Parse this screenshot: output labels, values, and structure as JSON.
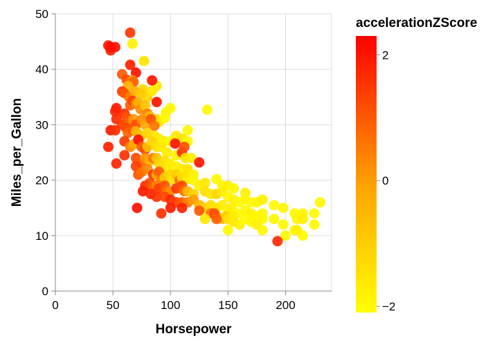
{
  "chart_data": {
    "type": "scatter",
    "title": "",
    "xlabel": "Horsepower",
    "ylabel": "Miles_per_Gallon",
    "xlim": [
      0,
      240
    ],
    "ylim": [
      0,
      50
    ],
    "x_ticks": [
      0,
      50,
      100,
      150,
      200
    ],
    "y_ticks": [
      0,
      10,
      20,
      30,
      40,
      50
    ],
    "grid": true,
    "legend": {
      "title": "accelerationZScore",
      "placement": "right",
      "domain": [
        -2.1,
        2.3
      ],
      "ticks": [
        -2,
        0,
        2
      ],
      "tick_labels": [
        "−2",
        "0",
        "2"
      ],
      "color_low": "#ffff00",
      "color_mid": "#ffa500",
      "color_high": "#ff0000"
    },
    "colors": {
      "grid": "#dddddd",
      "axis": "#888888"
    },
    "points": [
      {
        "x": 46,
        "y": 44.3,
        "z": 1.9
      },
      {
        "x": 48,
        "y": 43.4,
        "z": 1.8
      },
      {
        "x": 52,
        "y": 44.0,
        "z": 2.0
      },
      {
        "x": 48,
        "y": 44.0,
        "z": 2.1
      },
      {
        "x": 65,
        "y": 46.6,
        "z": 1.5
      },
      {
        "x": 67,
        "y": 44.6,
        "z": -1.8
      },
      {
        "x": 77,
        "y": 41.5,
        "z": -1.5
      },
      {
        "x": 65,
        "y": 40.8,
        "z": 1.8
      },
      {
        "x": 70,
        "y": 39.4,
        "z": 2.0
      },
      {
        "x": 58,
        "y": 39.1,
        "z": 1.0
      },
      {
        "x": 62,
        "y": 38.1,
        "z": 1.2
      },
      {
        "x": 67,
        "y": 38.0,
        "z": 0.3
      },
      {
        "x": 68,
        "y": 37.7,
        "z": 0.8
      },
      {
        "x": 63,
        "y": 37.0,
        "z": -0.5
      },
      {
        "x": 76,
        "y": 36.4,
        "z": -1.2
      },
      {
        "x": 88,
        "y": 37.0,
        "z": -1.6
      },
      {
        "x": 84,
        "y": 38.0,
        "z": 2.0
      },
      {
        "x": 58,
        "y": 36.0,
        "z": 1.5
      },
      {
        "x": 60,
        "y": 35.7,
        "z": 1.0
      },
      {
        "x": 64,
        "y": 35.0,
        "z": 0.6
      },
      {
        "x": 69,
        "y": 36.0,
        "z": -0.3
      },
      {
        "x": 74,
        "y": 35.6,
        "z": -0.9
      },
      {
        "x": 80,
        "y": 35.0,
        "z": -1.1
      },
      {
        "x": 84,
        "y": 36.1,
        "z": -1.6
      },
      {
        "x": 96,
        "y": 32.2,
        "z": -1.8
      },
      {
        "x": 100,
        "y": 33.0,
        "z": -1.9
      },
      {
        "x": 132,
        "y": 32.7,
        "z": -2.0
      },
      {
        "x": 88,
        "y": 34.1,
        "z": 2.0
      },
      {
        "x": 53,
        "y": 33.0,
        "z": 1.9
      },
      {
        "x": 52,
        "y": 32.4,
        "z": 1.8
      },
      {
        "x": 60,
        "y": 32.0,
        "z": 1.6
      },
      {
        "x": 65,
        "y": 33.5,
        "z": 0.9
      },
      {
        "x": 67,
        "y": 34.3,
        "z": 1.3
      },
      {
        "x": 70,
        "y": 33.8,
        "z": 0.5
      },
      {
        "x": 72,
        "y": 34.0,
        "z": -0.4
      },
      {
        "x": 74,
        "y": 32.8,
        "z": 0.2
      },
      {
        "x": 78,
        "y": 33.5,
        "z": -0.8
      },
      {
        "x": 80,
        "y": 32.0,
        "z": 0.4
      },
      {
        "x": 82,
        "y": 31.5,
        "z": -0.6
      },
      {
        "x": 88,
        "y": 31.0,
        "z": -1.3
      },
      {
        "x": 90,
        "y": 30.5,
        "z": -1.5
      },
      {
        "x": 95,
        "y": 31.2,
        "z": -1.9
      },
      {
        "x": 53,
        "y": 31.0,
        "z": 1.7
      },
      {
        "x": 58,
        "y": 30.0,
        "z": 1.4
      },
      {
        "x": 62,
        "y": 31.3,
        "z": 1.1
      },
      {
        "x": 65,
        "y": 30.2,
        "z": 0.7
      },
      {
        "x": 68,
        "y": 31.0,
        "z": 0.1
      },
      {
        "x": 70,
        "y": 30.0,
        "z": 1.2
      },
      {
        "x": 75,
        "y": 30.9,
        "z": 0.3
      },
      {
        "x": 78,
        "y": 30.0,
        "z": -0.2
      },
      {
        "x": 83,
        "y": 31.0,
        "z": 1.1
      },
      {
        "x": 86,
        "y": 29.8,
        "z": 0.6
      },
      {
        "x": 48,
        "y": 29.0,
        "z": 1.9
      },
      {
        "x": 52,
        "y": 29.0,
        "z": 1.6
      },
      {
        "x": 61,
        "y": 29.5,
        "z": 1.2
      },
      {
        "x": 63,
        "y": 28.5,
        "z": 0.8
      },
      {
        "x": 67,
        "y": 29.0,
        "z": 1.0
      },
      {
        "x": 70,
        "y": 28.8,
        "z": -0.5
      },
      {
        "x": 75,
        "y": 28.0,
        "z": -0.9
      },
      {
        "x": 80,
        "y": 28.5,
        "z": -1.2
      },
      {
        "x": 86,
        "y": 28.0,
        "z": -1.5
      },
      {
        "x": 90,
        "y": 27.5,
        "z": -1.7
      },
      {
        "x": 95,
        "y": 27.0,
        "z": -1.8
      },
      {
        "x": 100,
        "y": 27.0,
        "z": -1.9
      },
      {
        "x": 105,
        "y": 28.0,
        "z": -1.6
      },
      {
        "x": 110,
        "y": 27.5,
        "z": -1.4
      },
      {
        "x": 115,
        "y": 29.0,
        "z": -2.0
      },
      {
        "x": 115,
        "y": 27.0,
        "z": -1.9
      },
      {
        "x": 104,
        "y": 26.6,
        "z": 2.0
      },
      {
        "x": 46,
        "y": 26.0,
        "z": 1.8
      },
      {
        "x": 60,
        "y": 27.0,
        "z": 1.5
      },
      {
        "x": 65,
        "y": 26.0,
        "z": 0.4
      },
      {
        "x": 68,
        "y": 26.5,
        "z": -0.2
      },
      {
        "x": 72,
        "y": 27.3,
        "z": 2.1
      },
      {
        "x": 75,
        "y": 26.0,
        "z": 1.0
      },
      {
        "x": 78,
        "y": 25.5,
        "z": 1.3
      },
      {
        "x": 80,
        "y": 26.0,
        "z": -0.7
      },
      {
        "x": 84,
        "y": 27.0,
        "z": -1.1
      },
      {
        "x": 88,
        "y": 26.0,
        "z": -1.4
      },
      {
        "x": 92,
        "y": 26.0,
        "z": -1.6
      },
      {
        "x": 97,
        "y": 25.0,
        "z": -1.7
      },
      {
        "x": 105,
        "y": 24.5,
        "z": -1.8
      },
      {
        "x": 110,
        "y": 25.0,
        "z": 1.6
      },
      {
        "x": 112,
        "y": 26.0,
        "z": 1.2
      },
      {
        "x": 113,
        "y": 24.0,
        "z": -1.5
      },
      {
        "x": 118,
        "y": 24.0,
        "z": -1.7
      },
      {
        "x": 60,
        "y": 24.5,
        "z": 1.6
      },
      {
        "x": 70,
        "y": 24.0,
        "z": 1.2
      },
      {
        "x": 75,
        "y": 23.0,
        "z": 0.9
      },
      {
        "x": 78,
        "y": 24.0,
        "z": 0.2
      },
      {
        "x": 82,
        "y": 23.5,
        "z": -0.4
      },
      {
        "x": 85,
        "y": 24.0,
        "z": 0.6
      },
      {
        "x": 88,
        "y": 24.0,
        "z": -0.8
      },
      {
        "x": 90,
        "y": 23.0,
        "z": -1.1
      },
      {
        "x": 95,
        "y": 23.5,
        "z": -1.4
      },
      {
        "x": 97,
        "y": 22.0,
        "z": -1.6
      },
      {
        "x": 100,
        "y": 23.0,
        "z": -1.7
      },
      {
        "x": 105,
        "y": 22.5,
        "z": -1.8
      },
      {
        "x": 110,
        "y": 22.0,
        "z": -1.6
      },
      {
        "x": 112,
        "y": 21.5,
        "z": -1.9
      },
      {
        "x": 115,
        "y": 22.0,
        "z": -1.5
      },
      {
        "x": 120,
        "y": 21.0,
        "z": -1.8
      },
      {
        "x": 125,
        "y": 23.2,
        "z": 2.0
      },
      {
        "x": 53,
        "y": 23.0,
        "z": 1.8
      },
      {
        "x": 70,
        "y": 22.5,
        "z": 1.4
      },
      {
        "x": 72,
        "y": 21.0,
        "z": 1.1
      },
      {
        "x": 75,
        "y": 21.5,
        "z": 0.7
      },
      {
        "x": 80,
        "y": 22.0,
        "z": 0.3
      },
      {
        "x": 85,
        "y": 21.0,
        "z": 1.5
      },
      {
        "x": 88,
        "y": 21.0,
        "z": -0.3
      },
      {
        "x": 90,
        "y": 21.5,
        "z": 1.0
      },
      {
        "x": 92,
        "y": 20.0,
        "z": 0.5
      },
      {
        "x": 95,
        "y": 20.5,
        "z": -0.9
      },
      {
        "x": 100,
        "y": 21.0,
        "z": -1.2
      },
      {
        "x": 102,
        "y": 20.0,
        "z": -1.5
      },
      {
        "x": 105,
        "y": 21.0,
        "z": -1.0
      },
      {
        "x": 108,
        "y": 20.0,
        "z": 0.8
      },
      {
        "x": 110,
        "y": 20.5,
        "z": -1.4
      },
      {
        "x": 115,
        "y": 20.2,
        "z": -1.7
      },
      {
        "x": 120,
        "y": 20.0,
        "z": -1.9
      },
      {
        "x": 125,
        "y": 19.0,
        "z": -1.8
      },
      {
        "x": 130,
        "y": 19.5,
        "z": -1.6
      },
      {
        "x": 140,
        "y": 20.2,
        "z": -2.0
      },
      {
        "x": 145,
        "y": 19.0,
        "z": -1.9
      },
      {
        "x": 150,
        "y": 19.0,
        "z": -1.8
      },
      {
        "x": 155,
        "y": 18.5,
        "z": -1.9
      },
      {
        "x": 165,
        "y": 17.7,
        "z": -1.8
      },
      {
        "x": 78,
        "y": 19.0,
        "z": 1.6
      },
      {
        "x": 82,
        "y": 19.5,
        "z": 1.3
      },
      {
        "x": 85,
        "y": 19.0,
        "z": 0.9
      },
      {
        "x": 88,
        "y": 19.0,
        "z": 0.4
      },
      {
        "x": 90,
        "y": 18.5,
        "z": 1.4
      },
      {
        "x": 95,
        "y": 19.0,
        "z": 1.1
      },
      {
        "x": 97,
        "y": 18.0,
        "z": 0.6
      },
      {
        "x": 100,
        "y": 18.0,
        "z": 0.2
      },
      {
        "x": 105,
        "y": 18.5,
        "z": 1.5
      },
      {
        "x": 110,
        "y": 19.0,
        "z": 1.2
      },
      {
        "x": 112,
        "y": 18.0,
        "z": 0.7
      },
      {
        "x": 115,
        "y": 18.0,
        "z": -0.6
      },
      {
        "x": 120,
        "y": 17.5,
        "z": -1.1
      },
      {
        "x": 130,
        "y": 18.0,
        "z": -1.4
      },
      {
        "x": 135,
        "y": 17.5,
        "z": -1.6
      },
      {
        "x": 140,
        "y": 17.5,
        "z": -1.2
      },
      {
        "x": 145,
        "y": 18.0,
        "z": -1.7
      },
      {
        "x": 150,
        "y": 17.0,
        "z": -1.9
      },
      {
        "x": 155,
        "y": 16.5,
        "z": -1.8
      },
      {
        "x": 160,
        "y": 16.0,
        "z": -2.0
      },
      {
        "x": 165,
        "y": 16.5,
        "z": -1.9
      },
      {
        "x": 170,
        "y": 16.0,
        "z": -2.0
      },
      {
        "x": 175,
        "y": 16.0,
        "z": -1.9
      },
      {
        "x": 180,
        "y": 16.5,
        "z": -1.8
      },
      {
        "x": 76,
        "y": 18.0,
        "z": 1.9
      },
      {
        "x": 83,
        "y": 17.5,
        "z": 1.8
      },
      {
        "x": 88,
        "y": 17.0,
        "z": 1.6
      },
      {
        "x": 95,
        "y": 17.0,
        "z": 1.3
      },
      {
        "x": 100,
        "y": 16.5,
        "z": 1.7
      },
      {
        "x": 105,
        "y": 16.0,
        "z": 1.4
      },
      {
        "x": 110,
        "y": 16.0,
        "z": 1.0
      },
      {
        "x": 115,
        "y": 16.0,
        "z": 0.5
      },
      {
        "x": 120,
        "y": 16.5,
        "z": 0.0
      },
      {
        "x": 125,
        "y": 15.5,
        "z": -0.5
      },
      {
        "x": 130,
        "y": 15.0,
        "z": -1.0
      },
      {
        "x": 135,
        "y": 15.5,
        "z": -1.3
      },
      {
        "x": 140,
        "y": 15.0,
        "z": -1.5
      },
      {
        "x": 145,
        "y": 15.5,
        "z": -1.7
      },
      {
        "x": 150,
        "y": 14.5,
        "z": -1.9
      },
      {
        "x": 153,
        "y": 15.0,
        "z": -1.8
      },
      {
        "x": 158,
        "y": 14.0,
        "z": -2.0
      },
      {
        "x": 165,
        "y": 14.5,
        "z": -1.9
      },
      {
        "x": 170,
        "y": 14.0,
        "z": -1.8
      },
      {
        "x": 175,
        "y": 13.5,
        "z": -2.0
      },
      {
        "x": 180,
        "y": 14.0,
        "z": -1.9
      },
      {
        "x": 190,
        "y": 15.5,
        "z": -2.0
      },
      {
        "x": 198,
        "y": 15.0,
        "z": -1.9
      },
      {
        "x": 208,
        "y": 14.0,
        "z": -2.0
      },
      {
        "x": 215,
        "y": 14.0,
        "z": -1.9
      },
      {
        "x": 225,
        "y": 14.0,
        "z": -2.0
      },
      {
        "x": 230,
        "y": 16.0,
        "z": -1.9
      },
      {
        "x": 71,
        "y": 15.0,
        "z": 2.1
      },
      {
        "x": 100,
        "y": 15.0,
        "z": 1.9
      },
      {
        "x": 110,
        "y": 15.0,
        "z": 1.8
      },
      {
        "x": 125,
        "y": 14.5,
        "z": 1.0
      },
      {
        "x": 135,
        "y": 14.0,
        "z": 0.5
      },
      {
        "x": 140,
        "y": 13.5,
        "z": 0.0
      },
      {
        "x": 145,
        "y": 13.0,
        "z": -0.5
      },
      {
        "x": 148,
        "y": 13.5,
        "z": -1.0
      },
      {
        "x": 150,
        "y": 13.0,
        "z": -1.4
      },
      {
        "x": 155,
        "y": 12.5,
        "z": -1.6
      },
      {
        "x": 160,
        "y": 12.0,
        "z": -1.8
      },
      {
        "x": 165,
        "y": 13.0,
        "z": -2.0
      },
      {
        "x": 170,
        "y": 12.5,
        "z": -1.9
      },
      {
        "x": 175,
        "y": 12.0,
        "z": -1.8
      },
      {
        "x": 180,
        "y": 13.0,
        "z": -2.0
      },
      {
        "x": 190,
        "y": 13.0,
        "z": -1.9
      },
      {
        "x": 198,
        "y": 12.0,
        "z": -2.0
      },
      {
        "x": 210,
        "y": 13.0,
        "z": -1.9
      },
      {
        "x": 215,
        "y": 13.0,
        "z": -1.8
      },
      {
        "x": 225,
        "y": 12.0,
        "z": -2.0
      },
      {
        "x": 130,
        "y": 13.0,
        "z": -1.6
      },
      {
        "x": 150,
        "y": 11.0,
        "z": -2.0
      },
      {
        "x": 180,
        "y": 11.0,
        "z": -1.9
      },
      {
        "x": 200,
        "y": 10.0,
        "z": -2.0
      },
      {
        "x": 208,
        "y": 11.0,
        "z": -1.9
      },
      {
        "x": 210,
        "y": 11.0,
        "z": -1.8
      },
      {
        "x": 215,
        "y": 10.0,
        "z": -2.0
      },
      {
        "x": 193,
        "y": 9.0,
        "z": 1.7
      },
      {
        "x": 92,
        "y": 14.0,
        "z": 1.6
      },
      {
        "x": 138,
        "y": 14.0,
        "z": 1.2
      },
      {
        "x": 140,
        "y": 13.0,
        "z": 0.9
      },
      {
        "x": 155,
        "y": 13.5,
        "z": -1.7
      }
    ]
  }
}
